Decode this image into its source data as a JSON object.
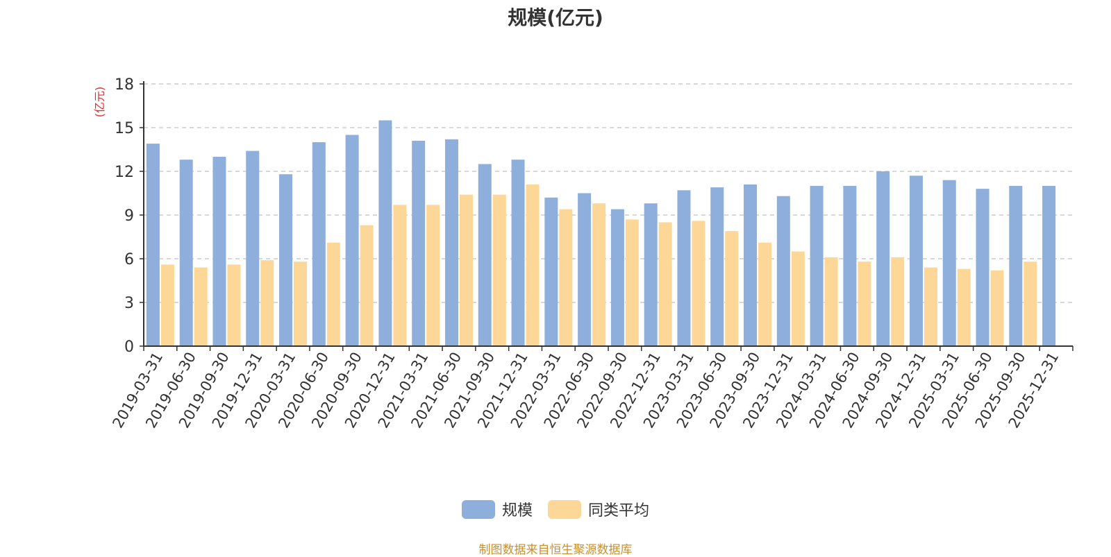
{
  "chart_data": {
    "type": "bar",
    "title": "规模(亿元)",
    "ylabel": "(亿元)",
    "xlabel": "",
    "ylim": [
      0,
      18
    ],
    "yticks": [
      0,
      3,
      6,
      9,
      12,
      15,
      18
    ],
    "grid": true,
    "legend_position": "bottom-center",
    "categories": [
      "2019-03-31",
      "2019-06-30",
      "2019-09-30",
      "2019-12-31",
      "2020-03-31",
      "2020-06-30",
      "2020-09-30",
      "2020-12-31",
      "2021-03-31",
      "2021-06-30",
      "2021-09-30",
      "2021-12-31",
      "2022-03-31",
      "2022-06-30",
      "2022-09-30",
      "2022-12-31",
      "2023-03-31",
      "2023-06-30",
      "2023-09-30",
      "2023-12-31",
      "2024-03-31",
      "2024-06-30",
      "2024-09-30",
      "2024-12-31",
      "2025-03-31",
      "2025-06-30",
      "2025-09-30",
      "2025-12-31"
    ],
    "series": [
      {
        "name": "规模",
        "color": "#8eaedb",
        "values": [
          13.9,
          12.8,
          13.0,
          13.4,
          11.8,
          14.0,
          14.5,
          15.5,
          14.1,
          14.2,
          12.5,
          12.8,
          10.2,
          10.5,
          9.4,
          9.8,
          10.7,
          10.9,
          11.1,
          10.3,
          11.0,
          11.0,
          12.0,
          11.7,
          11.4,
          10.8,
          11.0,
          11.0
        ]
      },
      {
        "name": "同类平均",
        "color": "#fdd797",
        "values": [
          5.6,
          5.4,
          5.6,
          5.9,
          5.8,
          7.1,
          8.3,
          9.7,
          9.7,
          10.4,
          10.4,
          11.1,
          9.4,
          9.8,
          8.7,
          8.5,
          8.6,
          7.9,
          7.1,
          6.5,
          6.1,
          5.8,
          6.1,
          5.4,
          5.3,
          5.2,
          5.8,
          null
        ]
      }
    ]
  },
  "source_text": "制图数据来自恒生聚源数据库"
}
